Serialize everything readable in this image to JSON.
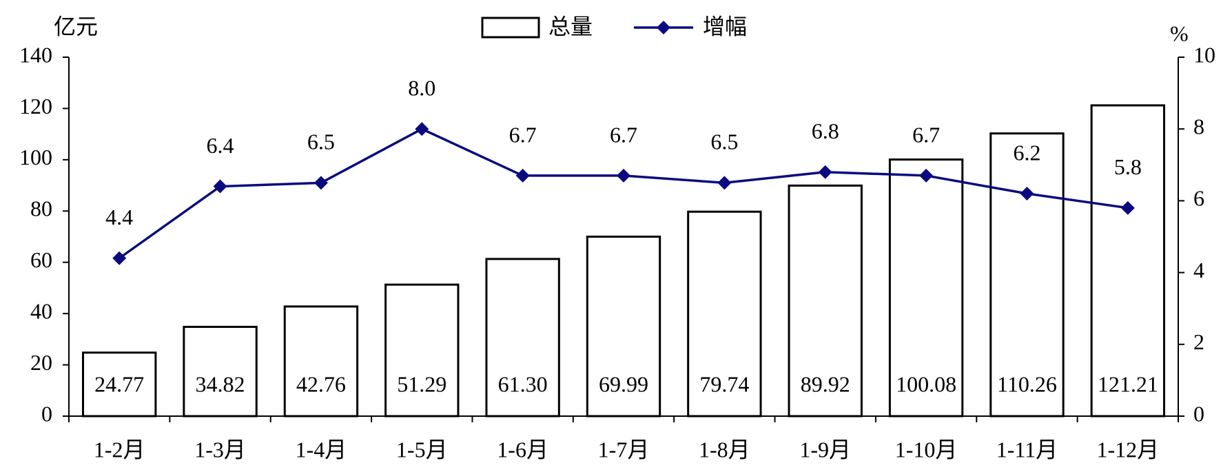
{
  "chart_data": {
    "type": "bar",
    "categories": [
      "1-2月",
      "1-3月",
      "1-4月",
      "1-5月",
      "1-6月",
      "1-7月",
      "1-8月",
      "1-9月",
      "1-10月",
      "1-11月",
      "1-12月"
    ],
    "y_label": "亿元",
    "y2_label": "%",
    "ylim": [
      0,
      140
    ],
    "yticks": [
      0,
      20,
      40,
      60,
      80,
      100,
      120,
      140
    ],
    "y2lim": [
      0,
      10
    ],
    "y2ticks": [
      0,
      2,
      4,
      6,
      8,
      10
    ],
    "legend": "top",
    "series": [
      {
        "name": "总量",
        "type": "bar",
        "color": "#ffffff",
        "stroke": "#000000",
        "values": [
          24.77,
          34.82,
          42.76,
          51.29,
          61.3,
          69.99,
          79.74,
          89.92,
          100.08,
          110.26,
          121.21
        ],
        "value_labels": [
          "24.77",
          "34.82",
          "42.76",
          "51.29",
          "61.30",
          "69.99",
          "79.74",
          "89.92",
          "100.08",
          "110.26",
          "121.21"
        ]
      },
      {
        "name": "增幅",
        "type": "line",
        "axis": "y2",
        "color": "#0a0a80",
        "values": [
          4.4,
          6.4,
          6.5,
          8.0,
          6.7,
          6.7,
          6.5,
          6.8,
          6.7,
          6.2,
          5.8
        ],
        "value_labels": [
          "4.4",
          "6.4",
          "6.5",
          "8.0",
          "6.7",
          "6.7",
          "6.5",
          "6.8",
          "6.7",
          "6.2",
          "5.8"
        ]
      }
    ]
  }
}
